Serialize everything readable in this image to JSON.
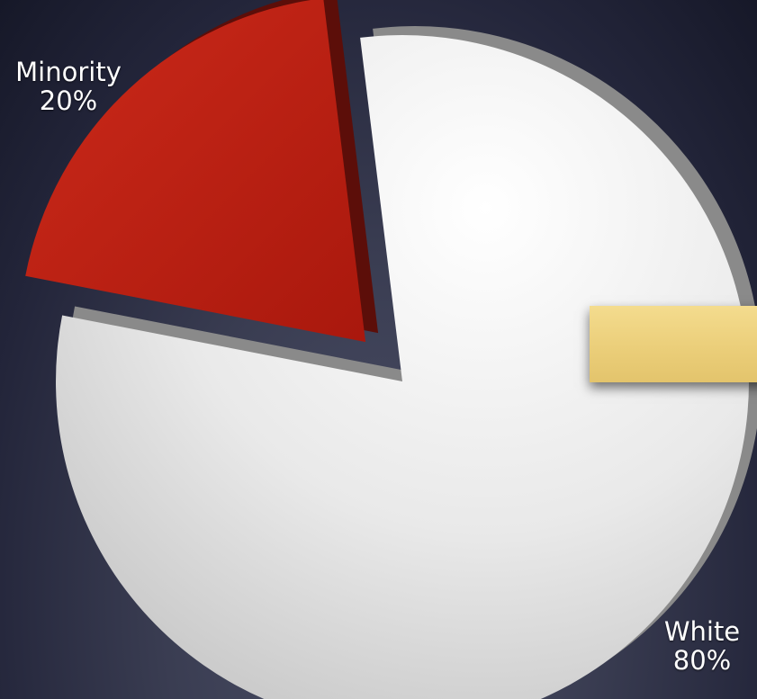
{
  "chart_data": {
    "type": "pie",
    "categories": [
      "White",
      "Minority"
    ],
    "values": [
      80,
      20
    ],
    "value_labels": [
      "80%",
      "20%"
    ],
    "exploded": "Minority",
    "title": "",
    "colors": {
      "White": "#e6e6e6",
      "Minority": "#b01e12"
    }
  },
  "labels": {
    "minority_name": "Minority",
    "minority_pct": "20%",
    "white_name": "White",
    "white_pct": "80%"
  },
  "colors": {
    "background": "#2b2e44",
    "note": "#ecd17c"
  }
}
